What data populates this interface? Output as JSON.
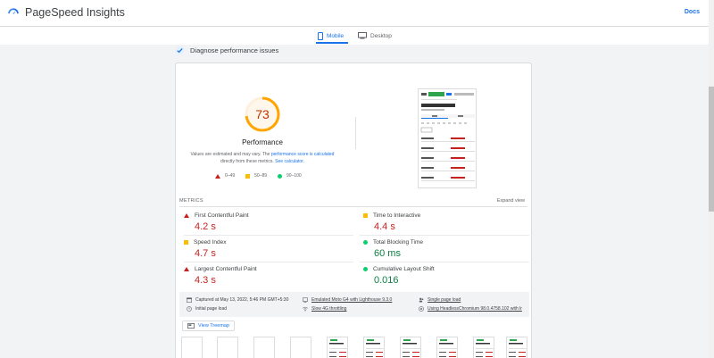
{
  "header": {
    "title": "PageSpeed Insights",
    "docs": "Docs"
  },
  "tabs": [
    {
      "label": "Mobile",
      "active": true
    },
    {
      "label": "Desktop",
      "active": false
    }
  ],
  "section": {
    "title": "Diagnose performance issues"
  },
  "performance": {
    "score": "73",
    "score_fraction": 0.73,
    "title": "Performance",
    "desc_part1": "Values are estimated and may vary. The ",
    "desc_link1": "performance score is calculated",
    "desc_part2": " directly from these metrics. ",
    "desc_link2": "See calculator.",
    "legend": [
      "0–49",
      "50–89",
      "90–100"
    ],
    "colors": {
      "poor": "#c5221f",
      "average": "#fbbc04",
      "good": "#0cce6b",
      "gauge": "#ffa400"
    }
  },
  "metrics": {
    "label": "METRICS",
    "expand": "Expand view",
    "items": [
      {
        "name": "First Contentful Paint",
        "value": "4.2 s",
        "status": "poor"
      },
      {
        "name": "Time to Interactive",
        "value": "4.4 s",
        "status": "average"
      },
      {
        "name": "Speed Index",
        "value": "4.7 s",
        "status": "average"
      },
      {
        "name": "Total Blocking Time",
        "value": "60 ms",
        "status": "good"
      },
      {
        "name": "Largest Contentful Paint",
        "value": "4.3 s",
        "status": "poor"
      },
      {
        "name": "Cumulative Layout Shift",
        "value": "0.016",
        "status": "good"
      }
    ]
  },
  "info": {
    "captured": "Captured at May 13, 2022, 5:46 PM GMT+5:30",
    "device": "Emulated Moto G4 with Lighthouse 9.3.0",
    "session": "Single page load",
    "initial": "Initial page load",
    "throttling": "Slow 4G throttling",
    "browser": "Using HeadlessChromium 98.0.4758.102 with lr"
  },
  "treemap": {
    "label": "View Treemap"
  }
}
